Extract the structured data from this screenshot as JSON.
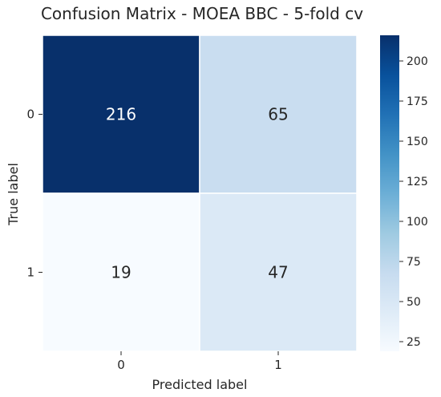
{
  "chart_data": {
    "type": "heatmap",
    "title": "Confusion Matrix - MOEA BBC - 5-fold cv",
    "xlabel": "Predicted label",
    "ylabel": "True label",
    "x_categories": [
      "0",
      "1"
    ],
    "y_categories": [
      "0",
      "1"
    ],
    "values": [
      [
        216,
        65
      ],
      [
        19,
        47
      ]
    ],
    "colormap": "Blues",
    "colorbar": {
      "range": [
        19,
        216
      ],
      "ticks": [
        25,
        50,
        75,
        100,
        125,
        150,
        175,
        200
      ]
    },
    "colors": {
      "low": "#f7fbff",
      "mid1": "#deebf7",
      "mid2": "#c6dbef",
      "mid3": "#9ecae1",
      "mid4": "#6baed6",
      "mid5": "#4292c6",
      "mid6": "#2171b5",
      "mid7": "#08519c",
      "high": "#08306b",
      "text_dark": "#262626",
      "text_light": "#ffffff"
    }
  }
}
